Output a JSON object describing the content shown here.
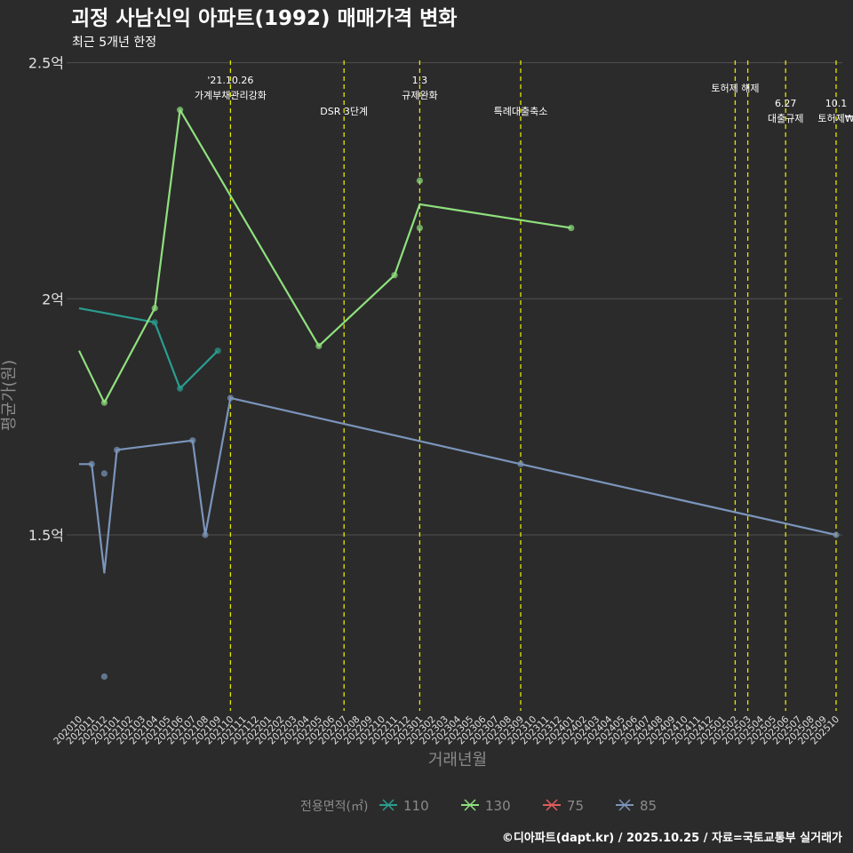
{
  "colors": {
    "background": "#2b2b2b",
    "grid": "#4a4a4a",
    "policy_line": "#e6e600",
    "text": "#ffffff",
    "muted_text": "#8a8a8a",
    "tick_text": "#e0e0e0"
  },
  "chart_data": {
    "type": "line",
    "title": "괴정 사남신익 아파트(1992) 매매가격 변화",
    "subtitle": "최근 5개년 한정",
    "xlabel": "거래년월",
    "ylabel": "평균가(원)",
    "caption": "©디아파트(dapt.kr) / 2025.10.25 / 자료=국토교통부 실거래가",
    "legend_title": "전용면적(㎡)",
    "legend_position": "bottom",
    "x_categories": [
      "202010",
      "202011",
      "202012",
      "202101",
      "202102",
      "202103",
      "202104",
      "202105",
      "202106",
      "202107",
      "202108",
      "202109",
      "202110",
      "202111",
      "202112",
      "202201",
      "202202",
      "202203",
      "202204",
      "202205",
      "202206",
      "202207",
      "202208",
      "202209",
      "202210",
      "202211",
      "202212",
      "202301",
      "202302",
      "202303",
      "202304",
      "202305",
      "202306",
      "202307",
      "202308",
      "202309",
      "202310",
      "202311",
      "202312",
      "202401",
      "202402",
      "202403",
      "202404",
      "202405",
      "202406",
      "202407",
      "202408",
      "202409",
      "202410",
      "202411",
      "202412",
      "202501",
      "202502",
      "202503",
      "202504",
      "202505",
      "202506",
      "202507",
      "202508",
      "202509",
      "202510"
    ],
    "y_unit": "억",
    "ylim": [
      1.15,
      2.5
    ],
    "y_ticks": [
      {
        "value": 1.5,
        "label": "1.5억"
      },
      {
        "value": 2.0,
        "label": "2억"
      },
      {
        "value": 2.5,
        "label": "2.5억"
      }
    ],
    "series": [
      {
        "name": "110",
        "color": "#2a9d8f",
        "line": [
          [
            "202010",
            1.98
          ],
          [
            "202104",
            1.95
          ],
          [
            "202106",
            1.81
          ],
          [
            "202109",
            1.89
          ]
        ],
        "points": [
          [
            "202104",
            1.95
          ],
          [
            "202106",
            1.81
          ],
          [
            "202109",
            1.89
          ]
        ]
      },
      {
        "name": "130",
        "color": "#8fe07e",
        "line": [
          [
            "202010",
            1.89
          ],
          [
            "202012",
            1.78
          ],
          [
            "202104",
            1.98
          ],
          [
            "202106",
            2.4
          ],
          [
            "202205",
            1.9
          ],
          [
            "202211",
            2.05
          ],
          [
            "202301",
            2.2
          ],
          [
            "202401",
            2.15
          ]
        ],
        "points": [
          [
            "202012",
            1.78
          ],
          [
            "202104",
            1.98
          ],
          [
            "202106",
            2.4
          ],
          [
            "202205",
            1.9
          ],
          [
            "202211",
            2.05
          ],
          [
            "202301",
            2.25
          ],
          [
            "202301",
            2.15
          ],
          [
            "202401",
            2.15
          ]
        ]
      },
      {
        "name": "75",
        "color": "#e05c5c",
        "line": [],
        "points": []
      },
      {
        "name": "85",
        "color": "#7b95bb",
        "line": [
          [
            "202010",
            1.65
          ],
          [
            "202011",
            1.65
          ],
          [
            "202012",
            1.42
          ],
          [
            "202101",
            1.68
          ],
          [
            "202107",
            1.7
          ],
          [
            "202108",
            1.5
          ],
          [
            "202110",
            1.79
          ],
          [
            "202309",
            1.65
          ],
          [
            "202510",
            1.5
          ]
        ],
        "points": [
          [
            "202011",
            1.65
          ],
          [
            "202012",
            1.63
          ],
          [
            "202012",
            1.2
          ],
          [
            "202101",
            1.68
          ],
          [
            "202107",
            1.7
          ],
          [
            "202108",
            1.5
          ],
          [
            "202110",
            1.79
          ],
          [
            "202309",
            1.65
          ],
          [
            "202510",
            1.5
          ]
        ]
      }
    ],
    "policy_events": [
      {
        "month": "202110",
        "label1": "'21.10.26",
        "label2": "가계부채관리강화"
      },
      {
        "month": "202207",
        "label1": "DSR 3단계",
        "label2": ""
      },
      {
        "month": "202301",
        "label1": "1.3",
        "label2": "규제완화"
      },
      {
        "month": "202309",
        "label1": "특례대출축소",
        "label2": ""
      },
      {
        "month": "202502",
        "label1": "토허제 해제",
        "label2": ""
      },
      {
        "month": "202503",
        "label1": "",
        "label2": ""
      },
      {
        "month": "202506",
        "label1": "6.27",
        "label2": "대출규제"
      },
      {
        "month": "202510",
        "label1": "10.1",
        "label2": "토허제₩"
      }
    ]
  }
}
